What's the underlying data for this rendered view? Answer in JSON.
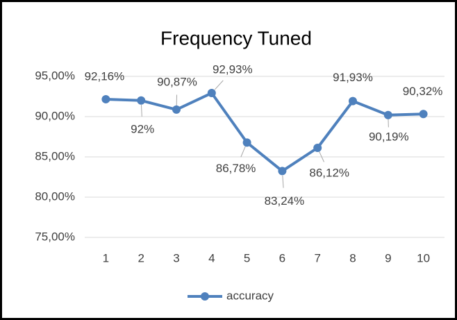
{
  "chart_data": {
    "type": "line",
    "title": "Frequency Tuned",
    "categories": [
      "1",
      "2",
      "3",
      "4",
      "5",
      "6",
      "7",
      "8",
      "9",
      "10"
    ],
    "series": [
      {
        "name": "accuracy",
        "color": "#4f81bd",
        "values": [
          92.16,
          92,
          90.87,
          92.93,
          86.78,
          83.24,
          86.12,
          91.93,
          90.19,
          90.32
        ],
        "value_labels": [
          "92,16%",
          "92%",
          "90,87%",
          "92,93%",
          "86,78%",
          "83,24%",
          "86,12%",
          "91,93%",
          "90,19%",
          "90,32%"
        ]
      }
    ],
    "ylim": [
      75,
      95
    ],
    "yticks": [
      {
        "value": 75,
        "label": "75,00%"
      },
      {
        "value": 80,
        "label": "80,00%"
      },
      {
        "value": 85,
        "label": "85,00%"
      },
      {
        "value": 90,
        "label": "90,00%"
      },
      {
        "value": 95,
        "label": "95,00%"
      }
    ],
    "grid": true,
    "legend": "bottom"
  }
}
